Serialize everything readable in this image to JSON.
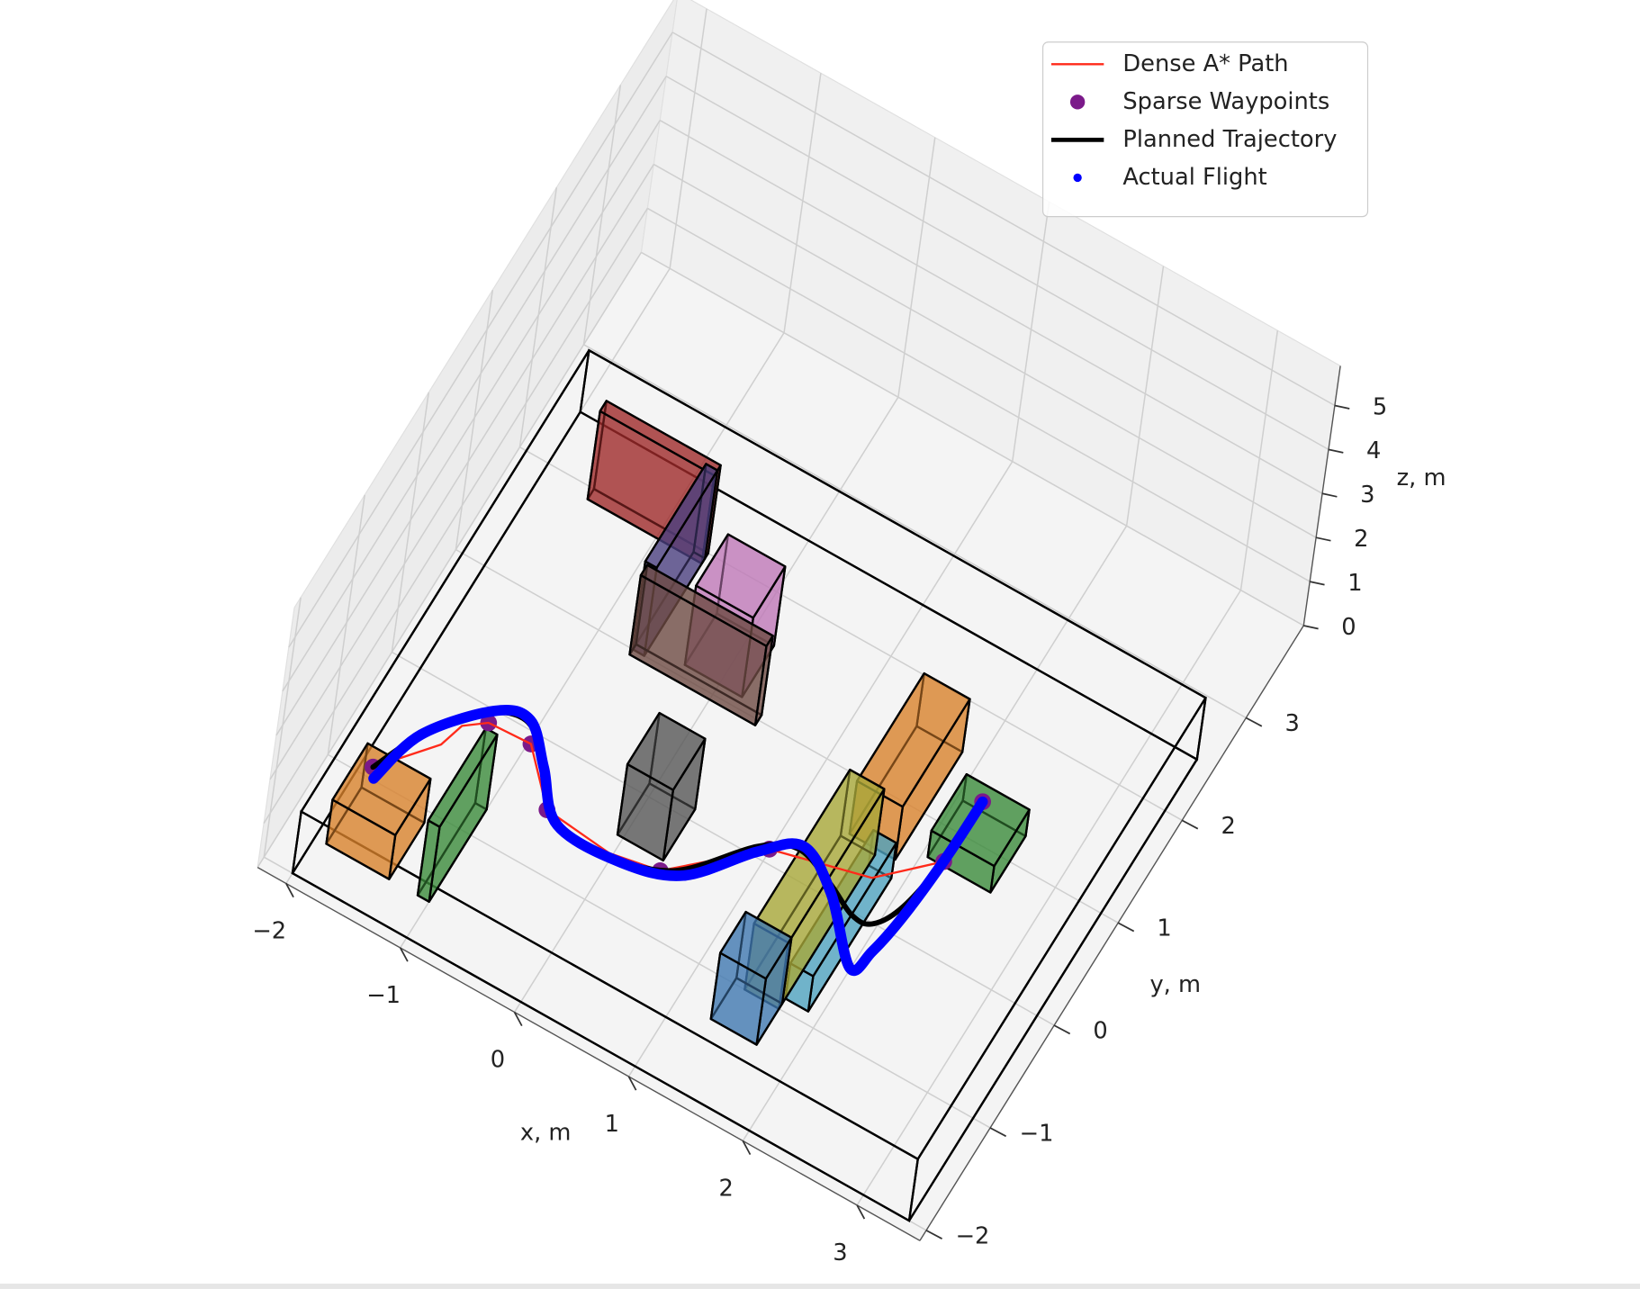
{
  "chart_data": {
    "type": "line3d",
    "xlabel": "x, m",
    "ylabel": "y, m",
    "zlabel": "z, m",
    "xlim": [
      -2.25,
      3.55
    ],
    "ylim": [
      -2.1,
      3.9
    ],
    "zlim": [
      0,
      5.9
    ],
    "xticks": [
      {
        "value": -2,
        "label": "−2"
      },
      {
        "value": -1,
        "label": "−1"
      },
      0,
      1,
      2,
      3
    ],
    "yticks": [
      {
        "value": -2,
        "label": "−2"
      },
      {
        "value": -1,
        "label": "−1"
      },
      0,
      1,
      2,
      3
    ],
    "zticks": [
      0,
      1,
      2,
      3,
      4,
      5
    ],
    "grid": true,
    "legend": "upper right",
    "boundary": {
      "color": "#000000",
      "x": [
        -2,
        3.4
      ],
      "y": [
        -2,
        2.5
      ],
      "z": [
        0,
        1.4
      ]
    },
    "obstacles": [
      {
        "color": "#d9822b",
        "x": [
          -1.9,
          -1.35
        ],
        "y": [
          -1.65,
          -1.1
        ],
        "z": [
          0,
          1
        ]
      },
      {
        "color": "#3a8a3a",
        "x": [
          -1.1,
          -1.0
        ],
        "y": [
          -1.65,
          -0.75
        ],
        "z": [
          0,
          1.7
        ]
      },
      {
        "color": "#555555",
        "x": [
          -0.05,
          0.35
        ],
        "y": [
          -0.4,
          0.1
        ],
        "z": [
          0,
          1.6
        ]
      },
      {
        "color": "#9e2a2a",
        "x": [
          -1.6,
          -0.6
        ],
        "y": [
          1.9,
          2.0
        ],
        "z": [
          0,
          2
        ]
      },
      {
        "color": "#4a3f80",
        "x": [
          -0.7,
          -0.6
        ],
        "y": [
          1.0,
          1.95
        ],
        "z": [
          0,
          2
        ]
      },
      {
        "color": "#6e4a44",
        "x": [
          -0.7,
          0.4
        ],
        "y": [
          0.95,
          1.05
        ],
        "z": [
          0,
          1.8
        ]
      },
      {
        "color": "#c078b8",
        "x": [
          -0.3,
          0.2
        ],
        "y": [
          1.1,
          1.6
        ],
        "z": [
          0,
          1.8
        ]
      },
      {
        "color": "#d9822b",
        "x": [
          1.45,
          1.85
        ],
        "y": [
          0.55,
          1.6
        ],
        "z": [
          0,
          1.2
        ]
      },
      {
        "color": "#3a8a3a",
        "x": [
          2.05,
          2.6
        ],
        "y": [
          0.7,
          1.25
        ],
        "z": [
          0,
          0.6
        ]
      },
      {
        "color": "#4fa3bf",
        "x": [
          1.7,
          1.9
        ],
        "y": [
          -0.9,
          0.4
        ],
        "z": [
          0,
          0.8
        ]
      },
      {
        "color": "#a8a838",
        "x": [
          1.4,
          1.7
        ],
        "y": [
          -1.0,
          0.5
        ],
        "z": [
          0,
          1.5
        ]
      },
      {
        "color": "#3f78b0",
        "x": [
          1.3,
          1.7
        ],
        "y": [
          -1.35,
          -0.95
        ],
        "z": [
          0,
          1.5
        ]
      }
    ],
    "series": [
      {
        "name": "Dense A* Path",
        "style": "line",
        "color": "#ff2a1a",
        "x": [
          -1.77,
          -1.42,
          -1.36,
          -1.2,
          -0.84,
          -0.47,
          0.11,
          0.51,
          1.13,
          1.91,
          2.31,
          2.32
        ],
        "y": [
          -1.25,
          -0.81,
          -0.59,
          -0.46,
          -0.44,
          -0.85,
          -0.91,
          -0.83,
          -0.23,
          -0.02,
          0.39,
          0.98
        ],
        "z": [
          1,
          1,
          1,
          1,
          1,
          1,
          1,
          1,
          1,
          1,
          1,
          1
        ]
      },
      {
        "name": "Sparse Waypoints",
        "style": "markers",
        "color": "#7b1a8a",
        "x": [
          -1.77,
          -1.2,
          -0.84,
          -0.47,
          0.51,
          1.13,
          2.31,
          2.32
        ],
        "y": [
          -1.25,
          -0.46,
          -0.44,
          -0.85,
          -0.83,
          -0.23,
          0.39,
          0.98
        ],
        "z": [
          1,
          1,
          1,
          1,
          1,
          1,
          1,
          1
        ]
      },
      {
        "name": "Planned Trajectory",
        "style": "thick-line",
        "color": "#000000",
        "x": [
          -1.77,
          -1.59,
          -1.27,
          -0.97,
          -0.72,
          -0.42,
          0.04,
          0.59,
          1.04,
          1.32,
          1.66,
          1.93,
          2.1,
          2.23,
          2.31,
          2.32
        ],
        "y": [
          -1.25,
          -0.83,
          -0.41,
          -0.29,
          -0.49,
          -0.87,
          -0.94,
          -0.78,
          -0.26,
          -0.11,
          -0.23,
          -0.37,
          -0.35,
          -0.1,
          0.43,
          0.98
        ],
        "z": [
          1,
          1,
          1,
          1,
          1,
          1,
          1,
          1,
          1,
          1,
          1,
          1,
          1,
          1,
          1,
          1
        ]
      },
      {
        "name": "Actual Flight",
        "style": "dots",
        "color": "#0000ff",
        "x": [
          -1.72,
          -1.59,
          -1.21,
          -0.94,
          -0.66,
          -0.34,
          0.22,
          0.68,
          1.06,
          1.34,
          1.71,
          2.13,
          2.21,
          2.27,
          2.31,
          2.32
        ],
        "y": [
          -1.33,
          -0.82,
          -0.35,
          -0.27,
          -0.56,
          -0.92,
          -0.93,
          -0.77,
          -0.3,
          -0.07,
          -0.3,
          -0.76,
          -0.55,
          -0.16,
          0.43,
          0.98
        ],
        "z": [
          1,
          1,
          1,
          1,
          1,
          1,
          1,
          1,
          1,
          1,
          1,
          1,
          1,
          1,
          1,
          1
        ]
      }
    ]
  }
}
